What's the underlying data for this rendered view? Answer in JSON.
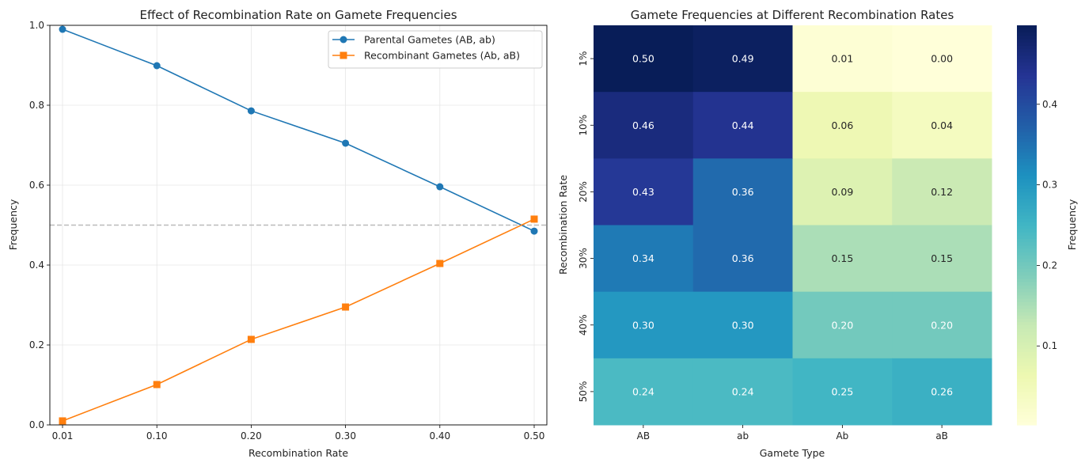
{
  "chart_data": [
    {
      "type": "line",
      "title": "Effect of Recombination Rate on Gamete Frequencies",
      "xlabel": "Recombination Rate",
      "ylabel": "Frequency",
      "categories": [
        "0.01",
        "0.10",
        "0.20",
        "0.30",
        "0.40",
        "0.50"
      ],
      "ylim": [
        0,
        1
      ],
      "yticks": [
        "0.0",
        "0.2",
        "0.4",
        "0.6",
        "0.8",
        "1.0"
      ],
      "grid": true,
      "legend_position": "top-right",
      "reference_line": {
        "y": 0.5,
        "style": "dashed",
        "color": "#bbbbbb"
      },
      "series": [
        {
          "name": "Parental Gametes (AB, ab)",
          "color": "#1f77b4",
          "marker": "circle",
          "values": [
            0.99,
            0.899,
            0.786,
            0.705,
            0.596,
            0.485
          ]
        },
        {
          "name": "Recombinant Gametes (Ab, aB)",
          "color": "#ff7f0e",
          "marker": "square",
          "values": [
            0.01,
            0.101,
            0.214,
            0.295,
            0.404,
            0.515
          ]
        }
      ]
    },
    {
      "type": "heatmap",
      "title": "Gamete Frequencies at Different Recombination Rates",
      "xlabel": "Gamete Type",
      "ylabel": "Recombination Rate",
      "columns": [
        "AB",
        "ab",
        "Ab",
        "aB"
      ],
      "rows": [
        "1%",
        "10%",
        "20%",
        "30%",
        "40%",
        "50%"
      ],
      "values": [
        [
          0.5,
          0.49,
          0.01,
          0.0
        ],
        [
          0.46,
          0.44,
          0.06,
          0.04
        ],
        [
          0.43,
          0.36,
          0.09,
          0.12
        ],
        [
          0.34,
          0.36,
          0.15,
          0.15
        ],
        [
          0.3,
          0.3,
          0.2,
          0.2
        ],
        [
          0.24,
          0.24,
          0.25,
          0.26
        ]
      ],
      "labels": [
        [
          "0.50",
          "0.49",
          "0.01",
          "0.00"
        ],
        [
          "0.46",
          "0.44",
          "0.06",
          "0.04"
        ],
        [
          "0.43",
          "0.36",
          "0.09",
          "0.12"
        ],
        [
          "0.34",
          "0.36",
          "0.15",
          "0.15"
        ],
        [
          "0.30",
          "0.30",
          "0.20",
          "0.20"
        ],
        [
          "0.24",
          "0.24",
          "0.25",
          "0.26"
        ]
      ],
      "colormap": "YlGnBu",
      "colormap_stops": [
        "#ffffd9",
        "#edf8b1",
        "#c7e9b4",
        "#7fcdbb",
        "#41b6c4",
        "#1d91c0",
        "#225ea8",
        "#253494",
        "#081d58"
      ],
      "color_range": [
        0.002,
        0.498
      ],
      "colorbar_label": "Frequency",
      "colorbar_ticks": [
        "0.1",
        "0.2",
        "0.3",
        "0.4"
      ]
    }
  ]
}
